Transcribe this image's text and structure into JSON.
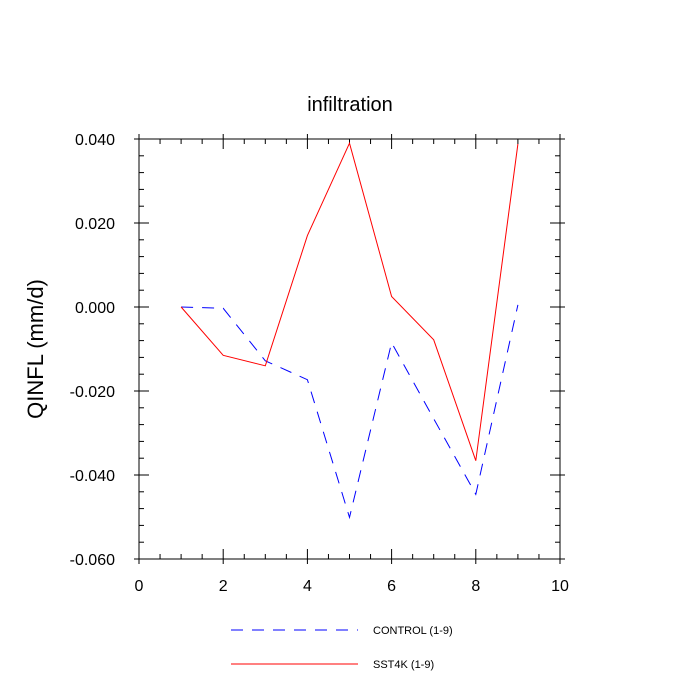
{
  "chart_data": {
    "type": "line",
    "title": "infiltration",
    "xlabel": "",
    "ylabel": "QINFL  (mm/d)",
    "xlim": [
      0,
      10
    ],
    "ylim": [
      -0.06,
      0.04
    ],
    "xticks": [
      0,
      2,
      4,
      6,
      8,
      10
    ],
    "xtick_labels": [
      "0",
      "2",
      "4",
      "6",
      "8",
      "10"
    ],
    "yticks": [
      -0.06,
      -0.04,
      -0.02,
      0.0,
      0.02,
      0.04
    ],
    "ytick_labels": [
      "-0.060",
      "-0.040",
      "-0.020",
      "0.000",
      "0.020",
      "0.040"
    ],
    "legend_position": "bottom-center",
    "x": [
      1,
      2,
      3,
      4,
      5,
      6,
      7,
      8,
      9
    ],
    "series": [
      {
        "name": "CONTROL (1-9)",
        "color": "#0000ff",
        "style": "dashed",
        "values": [
          0.0,
          -0.0003,
          -0.0128,
          -0.0173,
          -0.0501,
          -0.0085,
          -0.0266,
          -0.0446,
          0.0005
        ]
      },
      {
        "name": "SST4K (1-9)",
        "color": "#ff0000",
        "style": "solid",
        "values": [
          0.0,
          -0.0115,
          -0.014,
          0.017,
          0.039,
          0.0025,
          -0.0078,
          -0.0366,
          0.0388
        ]
      }
    ]
  }
}
